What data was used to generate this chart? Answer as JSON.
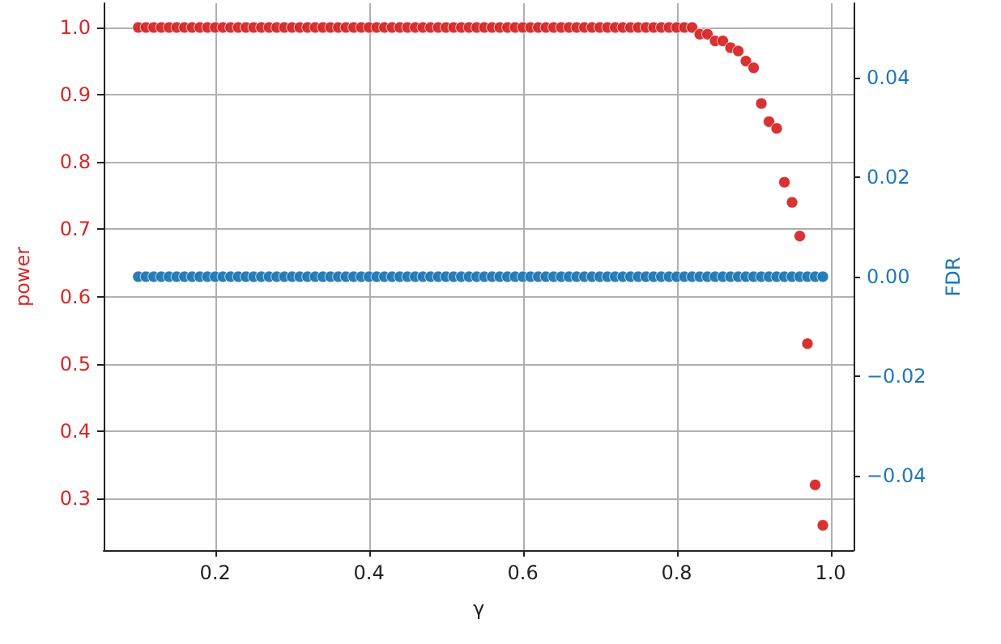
{
  "chart_data": {
    "type": "scatter",
    "xlabel": "γ",
    "ylabel": "power",
    "y2label": "FDR",
    "x": [
      0.1,
      0.11,
      0.12,
      0.13,
      0.14,
      0.15,
      0.16,
      0.17,
      0.18,
      0.19,
      0.2,
      0.21,
      0.22,
      0.23,
      0.24,
      0.25,
      0.26,
      0.27,
      0.28,
      0.29,
      0.3,
      0.31,
      0.32,
      0.33,
      0.34,
      0.35,
      0.36,
      0.37,
      0.38,
      0.39,
      0.4,
      0.41,
      0.42,
      0.43,
      0.44,
      0.45,
      0.46,
      0.47,
      0.48,
      0.49,
      0.5,
      0.51,
      0.52,
      0.53,
      0.54,
      0.55,
      0.56,
      0.57,
      0.58,
      0.59,
      0.6,
      0.61,
      0.62,
      0.63,
      0.64,
      0.65,
      0.66,
      0.67,
      0.68,
      0.69,
      0.7,
      0.71,
      0.72,
      0.73,
      0.74,
      0.75,
      0.76,
      0.77,
      0.78,
      0.79,
      0.8,
      0.81,
      0.82,
      0.83,
      0.84,
      0.85,
      0.86,
      0.87,
      0.88,
      0.89,
      0.9,
      0.91,
      0.92,
      0.93,
      0.94,
      0.95,
      0.96,
      0.97,
      0.98,
      0.99
    ],
    "series": [
      {
        "color": "#d62728",
        "values": [
          1,
          1,
          1,
          1,
          1,
          1,
          1,
          1,
          1,
          1,
          1,
          1,
          1,
          1,
          1,
          1,
          1,
          1,
          1,
          1,
          1,
          1,
          1,
          1,
          1,
          1,
          1,
          1,
          1,
          1,
          1,
          1,
          1,
          1,
          1,
          1,
          1,
          1,
          1,
          1,
          1,
          1,
          1,
          1,
          1,
          1,
          1,
          1,
          1,
          1,
          1,
          1,
          1,
          1,
          1,
          1,
          1,
          1,
          1,
          1,
          1,
          1,
          1,
          1,
          1,
          1,
          1,
          1,
          1,
          1,
          1,
          1,
          1,
          0.99,
          0.99,
          0.98,
          0.98,
          0.97,
          0.965,
          0.95,
          0.94,
          0.887,
          0.86,
          0.85,
          0.77,
          0.74,
          0.69,
          0.53,
          0.32,
          0.26
        ]
      },
      {
        "color": "#1f77b4",
        "axis": "y2",
        "values": [
          0,
          0,
          0,
          0,
          0,
          0,
          0,
          0,
          0,
          0,
          0,
          0,
          0,
          0,
          0,
          0,
          0,
          0,
          0,
          0,
          0,
          0,
          0,
          0,
          0,
          0,
          0,
          0,
          0,
          0,
          0,
          0,
          0,
          0,
          0,
          0,
          0,
          0,
          0,
          0,
          0,
          0,
          0,
          0,
          0,
          0,
          0,
          0,
          0,
          0,
          0,
          0,
          0,
          0,
          0,
          0,
          0,
          0,
          0,
          0,
          0,
          0,
          0,
          0,
          0,
          0,
          0,
          0,
          0,
          0,
          0,
          0,
          0,
          0,
          0,
          0,
          0,
          0,
          0,
          0,
          0,
          0,
          0,
          0,
          0,
          0,
          0,
          0,
          0,
          0
        ]
      }
    ],
    "xlim": [
      0.055,
      1.03
    ],
    "xticks": [
      0.2,
      0.4,
      0.6,
      0.8,
      {
        "value": 1,
        "label": "1.0"
      }
    ],
    "ylim": [
      0.223,
      1.036
    ],
    "yticks": [
      0.3,
      0.4,
      0.5,
      0.6,
      0.7,
      0.8,
      0.9,
      {
        "value": 1,
        "label": "1.0"
      }
    ],
    "y2lim": [
      -0.055,
      0.055
    ],
    "y2ticks": [
      {
        "value": -0.04,
        "label": "−0.04"
      },
      {
        "value": -0.02,
        "label": "−0.02"
      },
      {
        "value": 0,
        "label": "0.00"
      },
      0.02,
      0.04
    ],
    "grid": true,
    "marker": "circle"
  }
}
